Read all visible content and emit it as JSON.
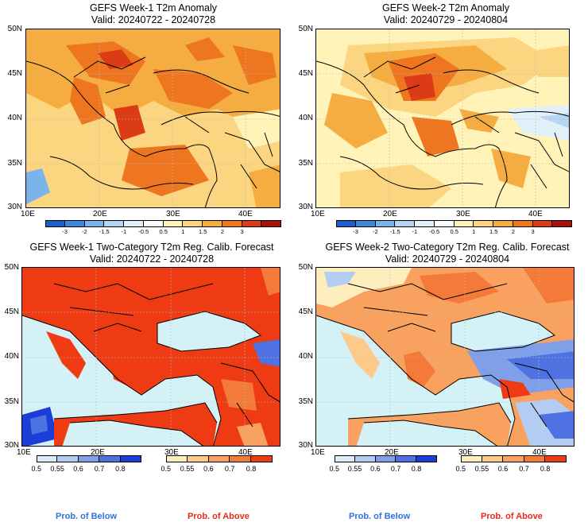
{
  "panels": [
    {
      "title": "GEFS Week-1 T2m Anomaly",
      "valid": "Valid: 20240722 - 20240728"
    },
    {
      "title": "GEFS Week-2 T2m Anomaly",
      "valid": "Valid: 20240729 - 20240804"
    },
    {
      "title": "GEFS Week-1 Two-Category T2m Reg. Calib. Forecast",
      "valid": "Valid: 20240722 - 20240728"
    },
    {
      "title": "GEFS Week-2 Two-Category T2m Reg. Calib. Forecast",
      "valid": "Valid: 20240729 - 20240804"
    }
  ],
  "lat_labels": [
    "50N",
    "45N",
    "40N",
    "35N",
    "30N"
  ],
  "lon_labels": [
    "10E",
    "20E",
    "30E",
    "40E"
  ],
  "anomaly_colorbar": {
    "labels": [
      "-3",
      "-2",
      "-1.5",
      "-1",
      "-0.5",
      "0.5",
      "1",
      "1.5",
      "2",
      "3"
    ],
    "colors": [
      "#1d5fc7",
      "#3f86db",
      "#7ab4ea",
      "#b4d6f3",
      "#e2f0fa",
      "#ffffff",
      "#fff3b8",
      "#fbd580",
      "#f5ad42",
      "#ee7621",
      "#dc3b17",
      "#a7120f"
    ]
  },
  "prob_colorbar": {
    "below_labels": [
      "0.5",
      "0.55",
      "0.6",
      "0.7",
      "0.8"
    ],
    "below_colors": [
      "#ddeaf9",
      "#b3cdf2",
      "#7f9fe9",
      "#4f72e2",
      "#1c3ed8"
    ],
    "above_labels": [
      "0.5",
      "0.55",
      "0.6",
      "0.7",
      "0.8"
    ],
    "above_colors": [
      "#ffeebd",
      "#fdca89",
      "#f9a260",
      "#f47a3a",
      "#ee3b14"
    ]
  },
  "legend": {
    "below": "Prob. of Below",
    "above": "Prob. of Above"
  },
  "colors": {
    "sea_prob": "#d4f1f5",
    "land_line": "#000000"
  }
}
